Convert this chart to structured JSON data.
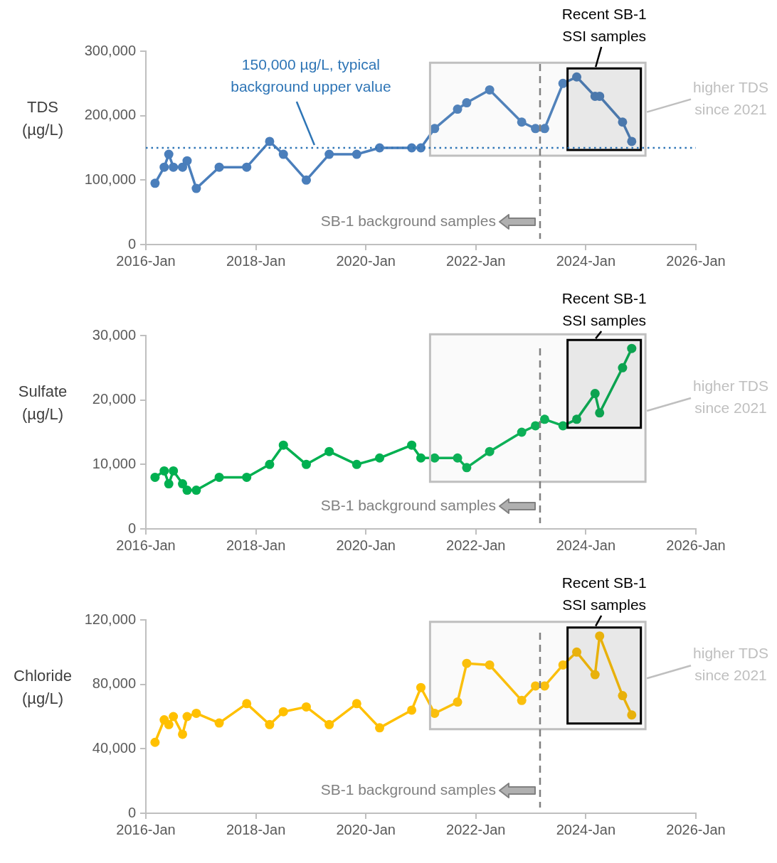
{
  "chart_data": [
    {
      "type": "line",
      "ylabel": "TDS (µg/L)",
      "color": "#4a7ebb",
      "marker": "circle",
      "x": [
        "2016-03",
        "2016-05",
        "2016-06",
        "2016-07",
        "2016-09",
        "2016-10",
        "2016-12",
        "2017-05",
        "2017-11",
        "2018-04",
        "2018-07",
        "2018-12",
        "2019-05",
        "2019-11",
        "2020-04",
        "2020-11",
        "2021-01",
        "2021-04",
        "2021-09",
        "2021-11",
        "2022-04",
        "2022-11",
        "2023-02",
        "2023-04",
        "2023-08",
        "2023-11",
        "2024-03",
        "2024-04",
        "2024-09",
        "2024-11"
      ],
      "values": [
        95000,
        120000,
        140000,
        120000,
        120000,
        130000,
        87000,
        120000,
        120000,
        160000,
        140000,
        100000,
        140000,
        140000,
        150000,
        150000,
        150000,
        180000,
        210000,
        220000,
        240000,
        190000,
        180000,
        180000,
        250000,
        260000,
        230000,
        230000,
        190000,
        160000
      ],
      "xlim": [
        "2016-01",
        "2026-01"
      ],
      "xticks": [
        {
          "value": "2016-01",
          "label": "2016-Jan"
        },
        {
          "value": "2018-01",
          "label": "2018-Jan"
        },
        {
          "value": "2020-01",
          "label": "2020-Jan"
        },
        {
          "value": "2022-01",
          "label": "2022-Jan"
        },
        {
          "value": "2024-01",
          "label": "2024-Jan"
        },
        {
          "value": "2026-01",
          "label": "2026-Jan"
        }
      ],
      "ylim": [
        0,
        300000
      ],
      "yticks": [
        {
          "value": 0,
          "label": "0"
        },
        {
          "value": 100000,
          "label": "100,000"
        },
        {
          "value": 200000,
          "label": "200,000"
        },
        {
          "value": 300000,
          "label": "300,000"
        }
      ],
      "ref_lines": [
        {
          "axis": "y",
          "value": 150000,
          "label": "150,000 µg/L, typical background upper value",
          "color": "#2e75b6",
          "line_style": "dotted"
        },
        {
          "axis": "x",
          "value": "2023-03",
          "label": "SB-1 background samples",
          "color": "#808080",
          "line_style": "dashed"
        }
      ],
      "bands": [
        {
          "axis": "x",
          "from": "2021-03",
          "to": "2025-02",
          "label": "higher TDS since 2021",
          "color": "#bfbfbf"
        },
        {
          "axis": "x",
          "from": "2023-09",
          "to": "2025-01",
          "label": "Recent SB-1 SSI samples",
          "color": "#000000"
        }
      ]
    },
    {
      "type": "line",
      "ylabel": "Sulfate (µg/L)",
      "color": "#00b050",
      "marker": "circle",
      "x": [
        "2016-03",
        "2016-05",
        "2016-06",
        "2016-07",
        "2016-09",
        "2016-10",
        "2016-12",
        "2017-05",
        "2017-11",
        "2018-04",
        "2018-07",
        "2018-12",
        "2019-05",
        "2019-11",
        "2020-04",
        "2020-11",
        "2021-01",
        "2021-04",
        "2021-09",
        "2021-11",
        "2022-04",
        "2022-11",
        "2023-02",
        "2023-04",
        "2023-08",
        "2023-11",
        "2024-03",
        "2024-04",
        "2024-09",
        "2024-11"
      ],
      "values": [
        8000,
        9000,
        7000,
        9000,
        7000,
        6000,
        6000,
        8000,
        8000,
        10000,
        13000,
        10000,
        12000,
        10000,
        11000,
        13000,
        11000,
        11000,
        11000,
        9500,
        12000,
        15000,
        16000,
        17000,
        16000,
        17000,
        21000,
        18000,
        25000,
        28000
      ],
      "xlim": [
        "2016-01",
        "2026-01"
      ],
      "xticks": [
        {
          "value": "2016-01",
          "label": "2016-Jan"
        },
        {
          "value": "2018-01",
          "label": "2018-Jan"
        },
        {
          "value": "2020-01",
          "label": "2020-Jan"
        },
        {
          "value": "2022-01",
          "label": "2022-Jan"
        },
        {
          "value": "2024-01",
          "label": "2024-Jan"
        },
        {
          "value": "2026-01",
          "label": "2026-Jan"
        }
      ],
      "ylim": [
        0,
        30000
      ],
      "yticks": [
        {
          "value": 0,
          "label": "0"
        },
        {
          "value": 10000,
          "label": "10,000"
        },
        {
          "value": 20000,
          "label": "20,000"
        },
        {
          "value": 30000,
          "label": "30,000"
        }
      ],
      "ref_lines": [
        {
          "axis": "x",
          "value": "2023-03",
          "label": "SB-1 background samples",
          "color": "#808080",
          "line_style": "dashed"
        }
      ],
      "bands": [
        {
          "axis": "x",
          "from": "2021-03",
          "to": "2025-02",
          "label": "higher TDS since 2021",
          "color": "#bfbfbf"
        },
        {
          "axis": "x",
          "from": "2023-09",
          "to": "2025-01",
          "label": "Recent SB-1 SSI samples",
          "color": "#000000"
        }
      ]
    },
    {
      "type": "line",
      "ylabel": "Chloride (µg/L)",
      "color": "#ffc000",
      "marker": "circle",
      "x": [
        "2016-03",
        "2016-05",
        "2016-06",
        "2016-07",
        "2016-09",
        "2016-10",
        "2016-12",
        "2017-05",
        "2017-11",
        "2018-04",
        "2018-07",
        "2018-12",
        "2019-05",
        "2019-11",
        "2020-04",
        "2020-11",
        "2021-01",
        "2021-04",
        "2021-09",
        "2021-11",
        "2022-04",
        "2022-11",
        "2023-02",
        "2023-04",
        "2023-08",
        "2023-11",
        "2024-03",
        "2024-04",
        "2024-09",
        "2024-11"
      ],
      "values": [
        44000,
        58000,
        55000,
        60000,
        49000,
        60000,
        62000,
        56000,
        68000,
        55000,
        63000,
        66000,
        55000,
        68000,
        53000,
        64000,
        78000,
        62000,
        69000,
        93000,
        92000,
        70000,
        79000,
        79000,
        92000,
        100000,
        86000,
        110000,
        73000,
        61000
      ],
      "xlim": [
        "2016-01",
        "2026-01"
      ],
      "xticks": [
        {
          "value": "2016-01",
          "label": "2016-Jan"
        },
        {
          "value": "2018-01",
          "label": "2018-Jan"
        },
        {
          "value": "2020-01",
          "label": "2020-Jan"
        },
        {
          "value": "2022-01",
          "label": "2022-Jan"
        },
        {
          "value": "2024-01",
          "label": "2024-Jan"
        },
        {
          "value": "2026-01",
          "label": "2026-Jan"
        }
      ],
      "ylim": [
        0,
        120000
      ],
      "yticks": [
        {
          "value": 0,
          "label": "0"
        },
        {
          "value": 40000,
          "label": "40,000"
        },
        {
          "value": 80000,
          "label": "80,000"
        },
        {
          "value": 120000,
          "label": "120,000"
        }
      ],
      "ref_lines": [
        {
          "axis": "x",
          "value": "2023-03",
          "label": "SB-1 background samples",
          "color": "#808080",
          "line_style": "dashed"
        }
      ],
      "bands": [
        {
          "axis": "x",
          "from": "2021-03",
          "to": "2025-02",
          "label": "higher TDS since 2021",
          "color": "#bfbfbf"
        },
        {
          "axis": "x",
          "from": "2023-09",
          "to": "2025-01",
          "label": "Recent SB-1 SSI samples",
          "color": "#000000"
        }
      ]
    }
  ]
}
